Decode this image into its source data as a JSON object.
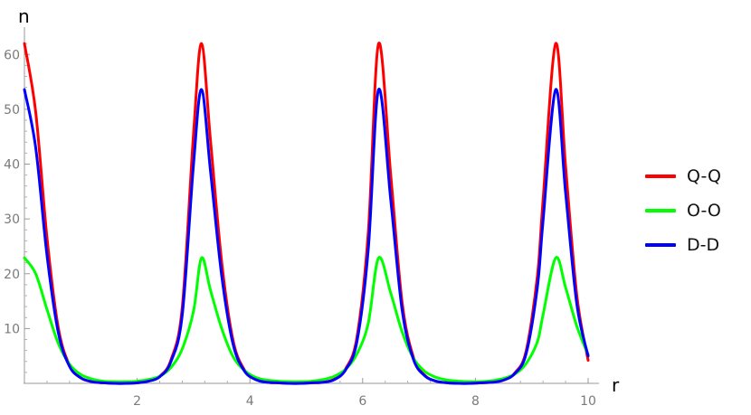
{
  "chart_data": {
    "type": "line",
    "title": "",
    "xlabel": "r",
    "ylabel": "n",
    "xlim": [
      0,
      10
    ],
    "ylim": [
      0,
      64
    ],
    "x_ticks": [
      2,
      4,
      6,
      8,
      10
    ],
    "y_ticks": [
      10,
      20,
      30,
      40,
      50,
      60
    ],
    "legend_position": "right",
    "grid": false,
    "x": [
      0,
      0.2,
      0.4,
      0.6,
      0.8,
      1.0,
      1.2,
      1.4,
      1.6,
      1.8,
      2.0,
      2.2,
      2.4,
      2.6,
      2.8,
      3.0,
      3.1416,
      3.3,
      3.5,
      3.7,
      3.9,
      4.1,
      4.3,
      4.5,
      4.7,
      4.9,
      5.1,
      5.3,
      5.5,
      5.7,
      5.9,
      6.1,
      6.2832,
      6.5,
      6.7,
      6.9,
      7.1,
      7.3,
      7.5,
      7.7,
      7.9,
      8.1,
      8.3,
      8.5,
      8.7,
      8.9,
      9.1,
      9.2,
      9.4248,
      9.6,
      9.8,
      10.0
    ],
    "series": [
      {
        "name": "Q-Q",
        "color": "#ff0000",
        "values": [
          62.0,
          49.5,
          26.6,
          10.2,
          3.3,
          1.0,
          0.3,
          0.1,
          0.0,
          0.0,
          0.1,
          0.4,
          1.3,
          4.3,
          13.9,
          45.6,
          62.0,
          44.4,
          22.1,
          7.9,
          2.5,
          0.8,
          0.2,
          0.1,
          0.0,
          0.0,
          0.1,
          0.2,
          0.8,
          2.7,
          8.5,
          27.6,
          62.0,
          37.8,
          14.8,
          4.8,
          1.5,
          0.4,
          0.1,
          0.0,
          0.0,
          0.1,
          0.2,
          0.6,
          1.9,
          5.9,
          19.6,
          33.4,
          62.0,
          39.6,
          16.0,
          4.2
        ]
      },
      {
        "name": "O-O",
        "color": "#00ff00",
        "values": [
          22.9,
          20.0,
          13.5,
          7.3,
          3.5,
          1.6,
          0.8,
          0.4,
          0.3,
          0.3,
          0.4,
          0.7,
          1.3,
          2.9,
          6.3,
          13.2,
          22.9,
          17.0,
          10.0,
          4.9,
          2.4,
          1.1,
          0.6,
          0.4,
          0.3,
          0.3,
          0.4,
          0.7,
          1.3,
          2.6,
          5.4,
          11.0,
          22.9,
          16.4,
          9.4,
          4.6,
          2.2,
          1.1,
          0.6,
          0.4,
          0.3,
          0.3,
          0.5,
          0.9,
          1.7,
          3.6,
          7.6,
          12.5,
          22.9,
          17.5,
          10.4,
          5.2
        ]
      },
      {
        "name": "D-D",
        "color": "#0000ff",
        "values": [
          53.6,
          43.0,
          23.4,
          9.3,
          3.1,
          1.0,
          0.3,
          0.1,
          0.0,
          0.0,
          0.1,
          0.4,
          1.2,
          4.0,
          12.5,
          40.0,
          53.6,
          38.8,
          19.6,
          7.2,
          2.3,
          0.7,
          0.2,
          0.1,
          0.0,
          0.0,
          0.1,
          0.2,
          0.7,
          2.5,
          7.7,
          24.5,
          53.6,
          33.3,
          13.4,
          4.4,
          1.4,
          0.4,
          0.1,
          0.0,
          0.0,
          0.1,
          0.2,
          0.6,
          1.8,
          5.4,
          17.6,
          29.6,
          53.6,
          34.8,
          14.4,
          5.0
        ]
      }
    ]
  }
}
